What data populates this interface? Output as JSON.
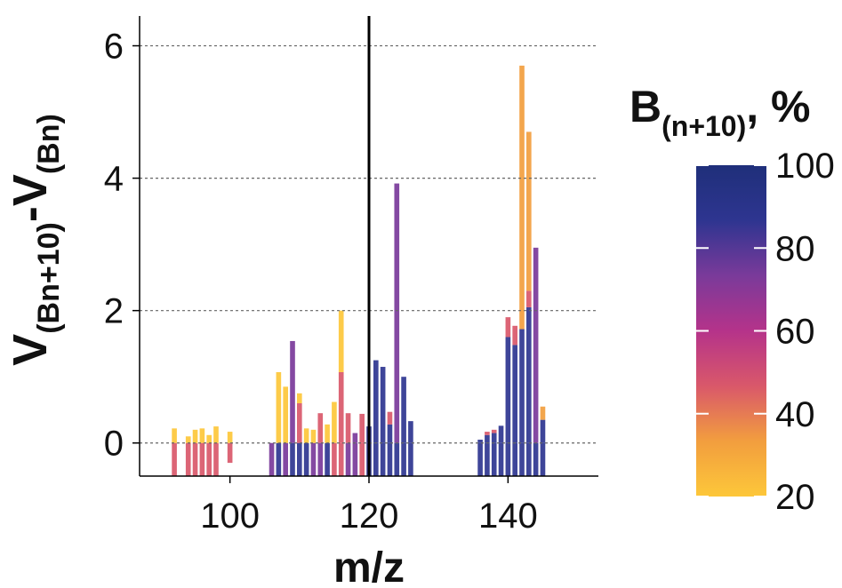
{
  "chart_data": {
    "type": "stacked-bar",
    "y_label_parts": [
      "V",
      "(Bn+10)",
      "-V",
      "(Bn)"
    ],
    "x_label": "m/z",
    "xlim": [
      87,
      153
    ],
    "xticks": [
      100,
      120,
      140
    ],
    "ylim": [
      -0.5,
      6.45
    ],
    "yticks": [
      0,
      2,
      4,
      6
    ],
    "grid": true,
    "vline": 120,
    "bars": [
      {
        "x": 92,
        "segments": [
          {
            "value": -0.5,
            "color": "#d9586a"
          },
          {
            "value": 0.22,
            "color": "#fdc73a"
          }
        ]
      },
      {
        "x": 94,
        "segments": [
          {
            "value": -0.5,
            "color": "#d9586a"
          },
          {
            "value": 0.1,
            "color": "#fdc73a"
          }
        ]
      },
      {
        "x": 95,
        "segments": [
          {
            "value": -0.5,
            "color": "#d9586a"
          },
          {
            "value": 0.2,
            "color": "#fdc73a"
          }
        ]
      },
      {
        "x": 96,
        "segments": [
          {
            "value": -0.5,
            "color": "#d9586a"
          },
          {
            "value": 0.22,
            "color": "#fdc73a"
          }
        ]
      },
      {
        "x": 97,
        "segments": [
          {
            "value": -0.5,
            "color": "#d9586a"
          },
          {
            "value": 0.12,
            "color": "#fdc73a"
          }
        ]
      },
      {
        "x": 98,
        "segments": [
          {
            "value": -0.5,
            "color": "#d9586a"
          },
          {
            "value": 0.25,
            "color": "#fdc73a"
          }
        ]
      },
      {
        "x": 100,
        "segments": [
          {
            "value": -0.3,
            "color": "#d9586a"
          },
          {
            "value": 0.17,
            "color": "#fdc73a"
          }
        ]
      },
      {
        "x": 106,
        "segments": [
          {
            "value": -0.5,
            "color": "#7a3a9a"
          }
        ]
      },
      {
        "x": 107,
        "segments": [
          {
            "value": -0.5,
            "color": "#2e3590"
          },
          {
            "value": 1.07,
            "color": "#fdc73a"
          }
        ]
      },
      {
        "x": 108,
        "segments": [
          {
            "value": -0.5,
            "color": "#7a3a9a"
          },
          {
            "value": 0.85,
            "color": "#fdc73a"
          }
        ]
      },
      {
        "x": 109,
        "segments": [
          {
            "value": -0.5,
            "color": "#2e3590"
          },
          {
            "value": 1.54,
            "color": "#7a3a9a"
          }
        ]
      },
      {
        "x": 110,
        "segments": [
          {
            "value": -0.5,
            "color": "#2e3590"
          },
          {
            "value": 0.6,
            "color": "#d9586a"
          },
          {
            "value": 0.15,
            "color": "#fdc73a"
          }
        ]
      },
      {
        "x": 111,
        "segments": [
          {
            "value": -0.5,
            "color": "#2e3590"
          },
          {
            "value": 0.22,
            "color": "#fdc73a"
          }
        ]
      },
      {
        "x": 112,
        "segments": [
          {
            "value": -0.5,
            "color": "#7a3a9a"
          },
          {
            "value": 0.2,
            "color": "#fdc73a"
          }
        ]
      },
      {
        "x": 113,
        "segments": [
          {
            "value": -0.5,
            "color": "#7a3a9a"
          },
          {
            "value": 0.45,
            "color": "#d9586a"
          }
        ]
      },
      {
        "x": 114,
        "segments": [
          {
            "value": -0.5,
            "color": "#2e3590"
          },
          {
            "value": 0.28,
            "color": "#fdc73a"
          }
        ]
      },
      {
        "x": 115,
        "segments": [
          {
            "value": -0.5,
            "color": "#d9586a"
          },
          {
            "value": 0.62,
            "color": "#fdc73a"
          }
        ]
      },
      {
        "x": 116,
        "segments": [
          {
            "value": -0.5,
            "color": "#d9586a"
          },
          {
            "value": 1.07,
            "color": "#d9586a"
          },
          {
            "value": 0.93,
            "color": "#fdc73a"
          }
        ]
      },
      {
        "x": 117,
        "segments": [
          {
            "value": -0.5,
            "color": "#7a3a9a"
          },
          {
            "value": 0.45,
            "color": "#d9586a"
          }
        ]
      },
      {
        "x": 118,
        "segments": [
          {
            "value": -0.5,
            "color": "#7a3a9a"
          },
          {
            "value": 0.15,
            "color": "#7a3a9a"
          }
        ]
      },
      {
        "x": 119,
        "segments": [
          {
            "value": -0.5,
            "color": "#d9586a"
          },
          {
            "value": 0.44,
            "color": "#d9586a"
          }
        ]
      },
      {
        "x": 120,
        "segments": [
          {
            "value": -0.5,
            "color": "#2e3590"
          },
          {
            "value": 0.25,
            "color": "#2e3590"
          }
        ]
      },
      {
        "x": 121,
        "segments": [
          {
            "value": -0.5,
            "color": "#2e3590"
          },
          {
            "value": 1.25,
            "color": "#2e3590"
          }
        ]
      },
      {
        "x": 122,
        "segments": [
          {
            "value": -0.5,
            "color": "#2e3590"
          },
          {
            "value": 1.15,
            "color": "#2e3590"
          }
        ]
      },
      {
        "x": 123,
        "segments": [
          {
            "value": -0.5,
            "color": "#2e3590"
          },
          {
            "value": 0.28,
            "color": "#2e3590"
          },
          {
            "value": 0.19,
            "color": "#d9586a"
          }
        ]
      },
      {
        "x": 124,
        "segments": [
          {
            "value": -0.5,
            "color": "#2e3590"
          },
          {
            "value": 3.92,
            "color": "#7a3a9a"
          }
        ]
      },
      {
        "x": 125,
        "segments": [
          {
            "value": -0.5,
            "color": "#2e3590"
          },
          {
            "value": 1.0,
            "color": "#2e3590"
          }
        ]
      },
      {
        "x": 126,
        "segments": [
          {
            "value": -0.5,
            "color": "#2e3590"
          },
          {
            "value": 0.33,
            "color": "#2e3590"
          }
        ]
      },
      {
        "x": 136,
        "segments": [
          {
            "value": -0.5,
            "color": "#2e3590"
          },
          {
            "value": 0.05,
            "color": "#2e3590"
          }
        ]
      },
      {
        "x": 137,
        "segments": [
          {
            "value": -0.5,
            "color": "#2e3590"
          },
          {
            "value": 0.12,
            "color": "#2e3590"
          },
          {
            "value": 0.05,
            "color": "#d9586a"
          }
        ]
      },
      {
        "x": 138,
        "segments": [
          {
            "value": -0.5,
            "color": "#2e3590"
          },
          {
            "value": 0.15,
            "color": "#2e3590"
          },
          {
            "value": 0.05,
            "color": "#d9586a"
          }
        ]
      },
      {
        "x": 139,
        "segments": [
          {
            "value": -0.5,
            "color": "#2e3590"
          },
          {
            "value": 0.26,
            "color": "#2e3590"
          }
        ]
      },
      {
        "x": 140,
        "segments": [
          {
            "value": -0.5,
            "color": "#2e3590"
          },
          {
            "value": 1.6,
            "color": "#2e3590"
          },
          {
            "value": 0.3,
            "color": "#d9586a"
          }
        ]
      },
      {
        "x": 141,
        "segments": [
          {
            "value": -0.5,
            "color": "#2e3590"
          },
          {
            "value": 1.48,
            "color": "#2e3590"
          },
          {
            "value": 0.29,
            "color": "#d9586a"
          }
        ]
      },
      {
        "x": 142,
        "segments": [
          {
            "value": -0.5,
            "color": "#2e3590"
          },
          {
            "value": 1.72,
            "color": "#2e3590"
          },
          {
            "value": 3.98,
            "color": "#f29e3e"
          }
        ]
      },
      {
        "x": 143,
        "segments": [
          {
            "value": -0.5,
            "color": "#2e3590"
          },
          {
            "value": 2.05,
            "color": "#2e3590"
          },
          {
            "value": 0.25,
            "color": "#d9586a"
          },
          {
            "value": 2.4,
            "color": "#f29e3e"
          }
        ]
      },
      {
        "x": 144,
        "segments": [
          {
            "value": -0.5,
            "color": "#2e3590"
          },
          {
            "value": 2.95,
            "color": "#7a3a9a"
          }
        ]
      },
      {
        "x": 145,
        "segments": [
          {
            "value": -0.5,
            "color": "#2e3590"
          },
          {
            "value": 0.35,
            "color": "#2e3590"
          },
          {
            "value": 0.2,
            "color": "#f29e3e"
          }
        ]
      }
    ],
    "colorbar": {
      "title_parts": [
        "B",
        "(n+10)",
        ", %"
      ],
      "lim": [
        20,
        100
      ],
      "ticks": [
        20,
        40,
        60,
        80,
        100
      ],
      "colors": [
        "#fdc73a",
        "#f29e3e",
        "#d9586a",
        "#b5338a",
        "#7a3a9a",
        "#2e3590",
        "#1f2f7a"
      ]
    }
  }
}
